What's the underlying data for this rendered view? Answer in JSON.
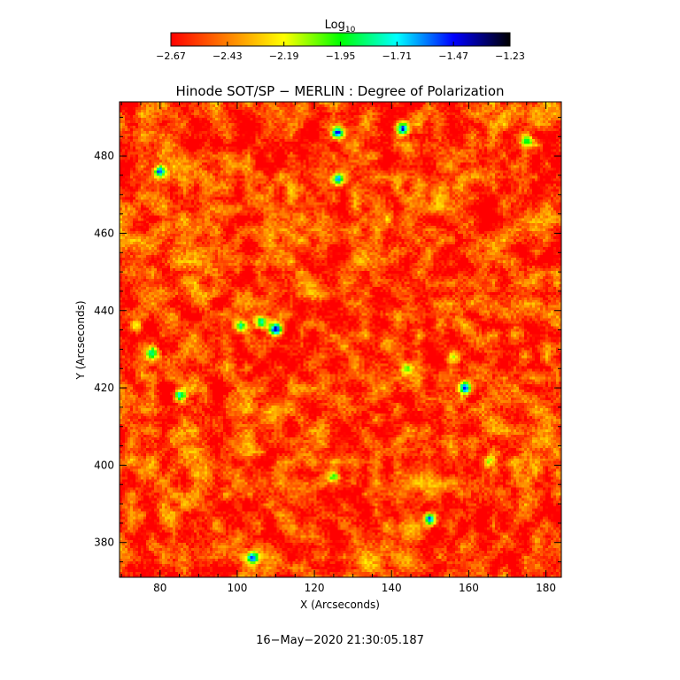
{
  "colorbar": {
    "label": "Log",
    "label_sub": "10",
    "ticks": [
      -2.67,
      -2.43,
      -2.19,
      -1.95,
      -1.71,
      -1.47,
      -1.23
    ],
    "tick_labels": [
      "−2.67",
      "−2.43",
      "−2.19",
      "−1.95",
      "−1.71",
      "−1.47",
      "−1.23"
    ],
    "range": [
      -2.67,
      -1.23
    ],
    "colors": [
      "#ff0000",
      "#ff8000",
      "#ffff00",
      "#00ff00",
      "#00ffff",
      "#0000ff",
      "#000000"
    ]
  },
  "chart_data": {
    "type": "heatmap",
    "title": "Hinode SOT/SP − MERLIN : Degree of Polarization",
    "xlabel": "X (Arcseconds)",
    "ylabel": "Y (Arcseconds)",
    "xlim": [
      69.5,
      184
    ],
    "ylim": [
      371,
      494
    ],
    "x_ticks": [
      80,
      100,
      120,
      140,
      160,
      180
    ],
    "y_ticks": [
      380,
      400,
      420,
      440,
      460,
      480
    ],
    "value_unit": "log10 degree of polarization",
    "background_level": -2.55,
    "features": [
      {
        "x": 126,
        "y": 486,
        "value": -1.45
      },
      {
        "x": 143,
        "y": 487,
        "value": -1.5
      },
      {
        "x": 80,
        "y": 476,
        "value": -1.5
      },
      {
        "x": 126,
        "y": 474,
        "value": -1.6
      },
      {
        "x": 106,
        "y": 437,
        "value": -1.7
      },
      {
        "x": 110,
        "y": 435,
        "value": -1.35
      },
      {
        "x": 101,
        "y": 436,
        "value": -1.9
      },
      {
        "x": 159,
        "y": 420,
        "value": -1.4
      },
      {
        "x": 150,
        "y": 386,
        "value": -1.5
      },
      {
        "x": 125,
        "y": 397,
        "value": -1.9
      },
      {
        "x": 104,
        "y": 376,
        "value": -1.7
      },
      {
        "x": 85,
        "y": 418,
        "value": -1.7
      },
      {
        "x": 175,
        "y": 484,
        "value": -1.8
      },
      {
        "x": 74,
        "y": 436,
        "value": -2.0
      },
      {
        "x": 78,
        "y": 429,
        "value": -1.9
      },
      {
        "x": 156,
        "y": 428,
        "value": -2.0
      },
      {
        "x": 144,
        "y": 425,
        "value": -2.05
      },
      {
        "x": 165,
        "y": 401,
        "value": -2.0
      }
    ]
  },
  "timestamp": "16−May−2020 21:30:05.187"
}
